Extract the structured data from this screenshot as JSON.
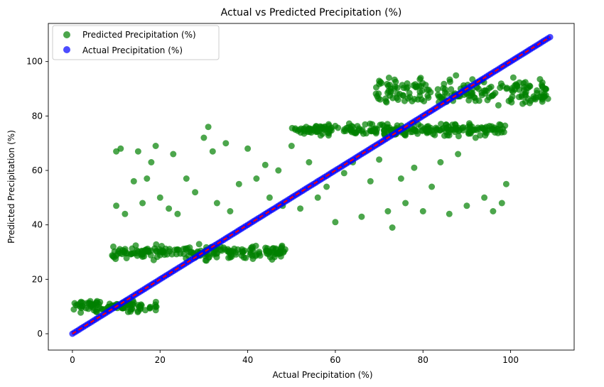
{
  "chart_data": {
    "type": "scatter",
    "title": "Actual vs Predicted Precipitation (%)",
    "xlabel": "Actual Precipitation (%)",
    "ylabel": "Predicted Precipitation (%)",
    "xlim": [
      -5.5,
      114.5
    ],
    "ylim": [
      -6,
      114
    ],
    "xticks": [
      0,
      20,
      40,
      60,
      80,
      100
    ],
    "yticks": [
      0,
      20,
      40,
      60,
      80,
      100
    ],
    "grid": false,
    "legend_position": "top-left",
    "series": [
      {
        "name": "Predicted Precipitation (%)",
        "color": "#008000",
        "clusters": [
          {
            "x_range": [
              0,
              19.5
            ],
            "y_center": 10,
            "y_spread": 1.8
          },
          {
            "x_range": [
              9,
              49
            ],
            "y_center": 30,
            "y_spread": 2.2
          },
          {
            "x_range": [
              50,
              99
            ],
            "y_center": 75,
            "y_spread": 1.8
          },
          {
            "x_range": [
              69,
              109
            ],
            "y_center": 88.5,
            "y_spread": 4.5
          }
        ],
        "scattered_points": [
          [
            10,
            67
          ],
          [
            11,
            68
          ],
          [
            10,
            47
          ],
          [
            12,
            44
          ],
          [
            14,
            56
          ],
          [
            15,
            67
          ],
          [
            16,
            48
          ],
          [
            17,
            57
          ],
          [
            18,
            63
          ],
          [
            19,
            69
          ],
          [
            20,
            50
          ],
          [
            22,
            46
          ],
          [
            23,
            66
          ],
          [
            24,
            44
          ],
          [
            26,
            57
          ],
          [
            28,
            52
          ],
          [
            30,
            72
          ],
          [
            31,
            76
          ],
          [
            32,
            67
          ],
          [
            33,
            48
          ],
          [
            35,
            70
          ],
          [
            36,
            45
          ],
          [
            38,
            55
          ],
          [
            40,
            68
          ],
          [
            42,
            57
          ],
          [
            44,
            62
          ],
          [
            45,
            50
          ],
          [
            47,
            60
          ],
          [
            48,
            47
          ],
          [
            50,
            69
          ],
          [
            52,
            46
          ],
          [
            54,
            63
          ],
          [
            56,
            50
          ],
          [
            58,
            54
          ],
          [
            60,
            41
          ],
          [
            62,
            59
          ],
          [
            64,
            63
          ],
          [
            66,
            43
          ],
          [
            68,
            56
          ],
          [
            70,
            64
          ],
          [
            72,
            45
          ],
          [
            73,
            39
          ],
          [
            75,
            57
          ],
          [
            76,
            48
          ],
          [
            78,
            61
          ],
          [
            80,
            45
          ],
          [
            82,
            54
          ],
          [
            84,
            63
          ],
          [
            86,
            44
          ],
          [
            88,
            66
          ],
          [
            90,
            47
          ],
          [
            92,
            72
          ],
          [
            94,
            50
          ],
          [
            96,
            45
          ],
          [
            98,
            48
          ],
          [
            99,
            55
          ]
        ]
      },
      {
        "name": "Actual Precipitation (%)",
        "color": "#0000ff",
        "points": "identity",
        "x_range": [
          0,
          109
        ],
        "x_step": 0.5
      }
    ],
    "reference_line": {
      "type": "dashed",
      "color": "#ff0000",
      "from": [
        0,
        0
      ],
      "to": [
        109,
        109
      ]
    }
  }
}
